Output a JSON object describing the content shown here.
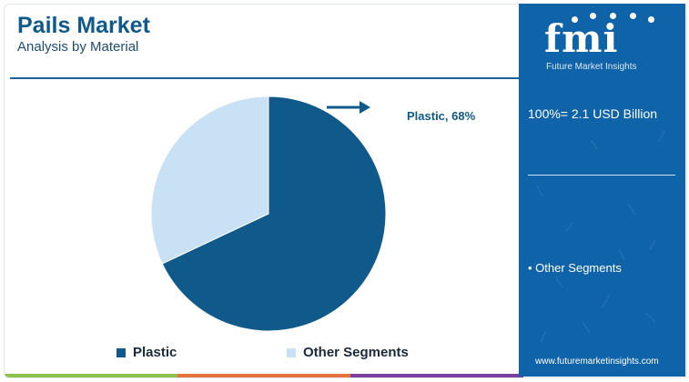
{
  "header": {
    "title": "Pails Market",
    "subtitle": "Analysis by Material"
  },
  "callout": {
    "label": "Plastic, 68%"
  },
  "legend": {
    "items": [
      {
        "label": "Plastic",
        "color": "#0f5a8a"
      },
      {
        "label": "Other Segments",
        "color": "#c8e1f4"
      }
    ]
  },
  "chart_data": {
    "type": "pie",
    "title": "Pails Market",
    "subtitle": "Analysis by Material",
    "slices": [
      {
        "name": "Plastic",
        "value": 68,
        "color": "#0f5a8a"
      },
      {
        "name": "Other Segments",
        "value": 32,
        "color": "#c8e1f4"
      }
    ],
    "start_angle_deg": 0,
    "direction": "clockwise",
    "legend_position": "bottom",
    "callouts": [
      "Plastic, 68%"
    ]
  },
  "sidebar": {
    "logo": {
      "name": "fmi",
      "tagline": "Future Market Insights"
    },
    "total": "100%= 2.1 USD Billion",
    "segment": "• Other Segments",
    "url": "www.futuremarketinsights.com"
  },
  "colors": {
    "brand_dark": "#0f5a8a",
    "brand_light": "#c8e1f4",
    "sidebar_bg": "#0f63a8",
    "rule": "#1f5f92",
    "footer_green": "#8bc34a",
    "footer_orange": "#e8743b",
    "footer_purple": "#7b3fa0"
  }
}
